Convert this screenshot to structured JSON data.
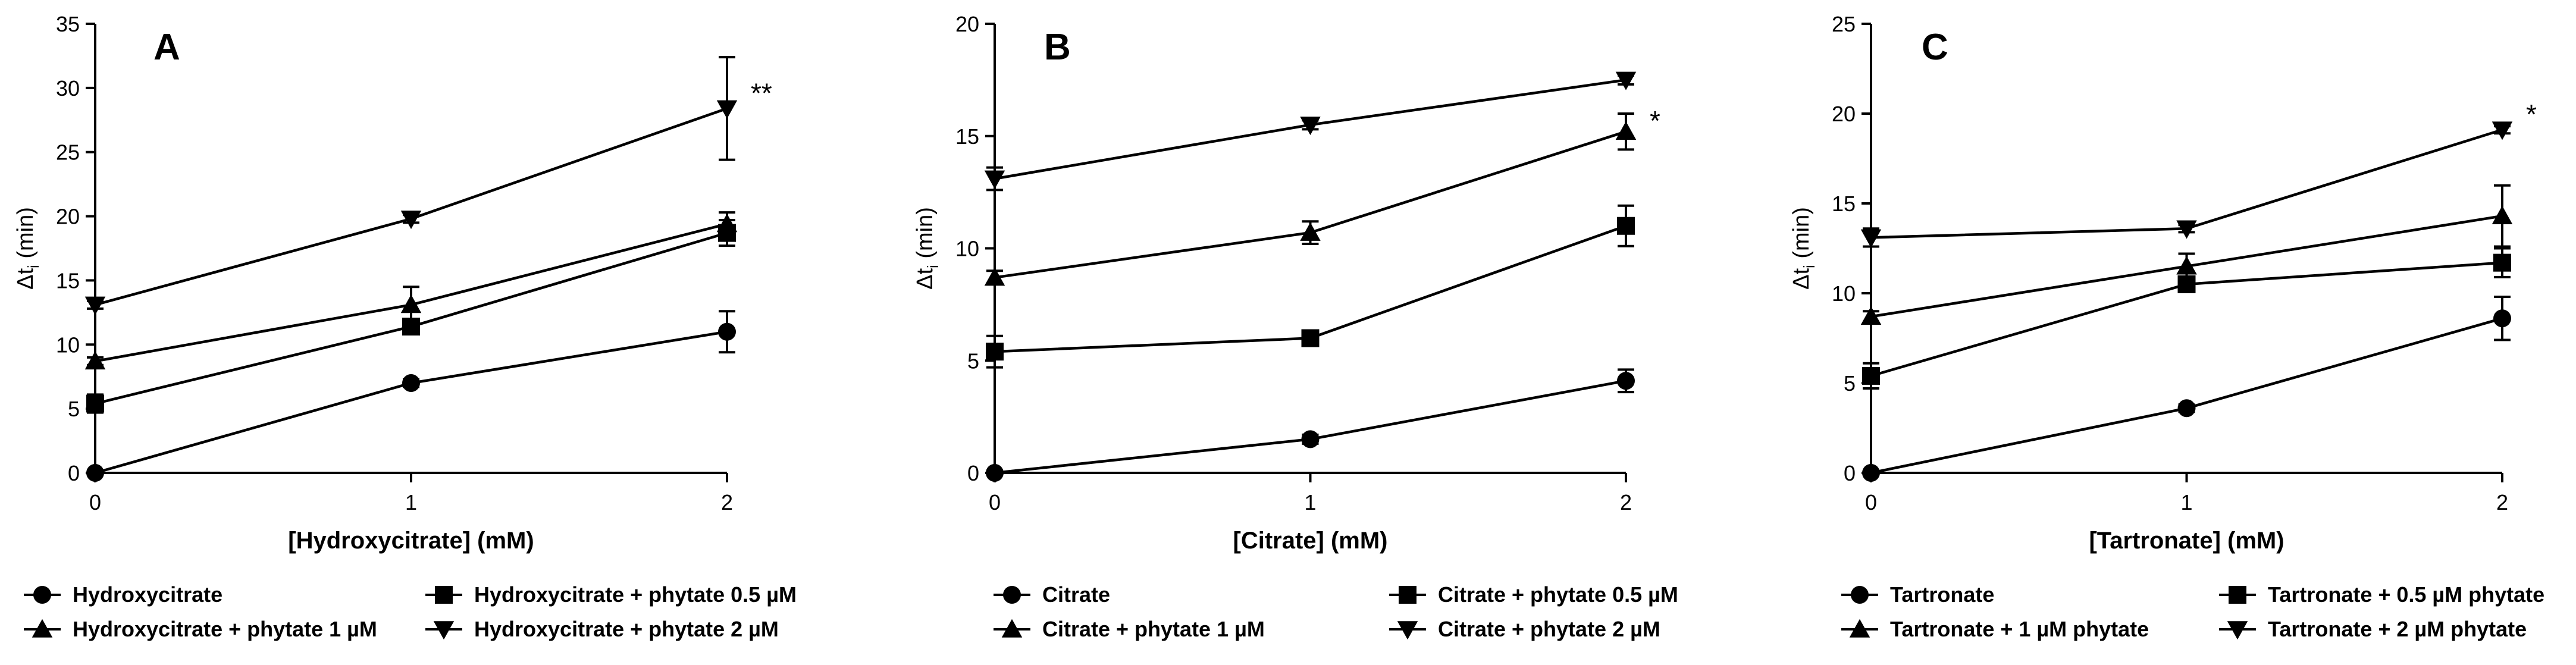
{
  "figure": {
    "colors": {
      "ink": "#000000",
      "background": "#ffffff"
    },
    "panels": [
      {
        "id": "A",
        "letter": "A",
        "xlabel": "[Hydroxycitrate] (mM)",
        "ylabel": {
          "main": "Δt",
          "sub": "i",
          "unit": " (min)"
        },
        "significance": "**",
        "chart_data": {
          "type": "line",
          "x": [
            0,
            1,
            2
          ],
          "xlim": [
            0,
            2
          ],
          "xticks": [
            0,
            1,
            2
          ],
          "ylim": [
            0,
            35
          ],
          "yticks": [
            0,
            5,
            10,
            15,
            20,
            25,
            30,
            35
          ],
          "series": [
            {
              "name": "Hydroxycitrate",
              "marker": "circle",
              "values": [
                0,
                7,
                11
              ],
              "errors": [
                0,
                0.3,
                1.6
              ]
            },
            {
              "name": "Hydroxycitrate + phytate 0.5 µM",
              "marker": "square",
              "values": [
                5.4,
                11.4,
                18.7
              ],
              "errors": [
                0.7,
                0.4,
                1.0
              ]
            },
            {
              "name": "Hydroxycitrate + phytate 1 µM",
              "marker": "triangle-up",
              "values": [
                8.7,
                13.1,
                19.4
              ],
              "errors": [
                0.3,
                1.4,
                0.9
              ]
            },
            {
              "name": "Hydroxycitrate + phytate 2 µM",
              "marker": "triangle-down",
              "values": [
                13.1,
                19.8,
                28.4
              ],
              "errors": [
                0.3,
                0.3,
                4.0
              ]
            }
          ]
        }
      },
      {
        "id": "B",
        "letter": "B",
        "xlabel": "[Citrate] (mM)",
        "ylabel": {
          "main": "Δt",
          "sub": "i",
          "unit": " (min)"
        },
        "significance": "*",
        "chart_data": {
          "type": "line",
          "x": [
            0,
            1,
            2
          ],
          "xlim": [
            0,
            2
          ],
          "xticks": [
            0,
            1,
            2
          ],
          "ylim": [
            0,
            20
          ],
          "yticks": [
            0,
            5,
            10,
            15,
            20
          ],
          "series": [
            {
              "name": "Citrate",
              "marker": "circle",
              "values": [
                0,
                1.5,
                4.1
              ],
              "errors": [
                0,
                0.2,
                0.5
              ]
            },
            {
              "name": "Citrate + phytate 0.5 µM",
              "marker": "square",
              "values": [
                5.4,
                6.0,
                11.0
              ],
              "errors": [
                0.7,
                0.2,
                0.9
              ]
            },
            {
              "name": "Citrate + phytate 1 µM",
              "marker": "triangle-up",
              "values": [
                8.7,
                10.7,
                15.2
              ],
              "errors": [
                0.3,
                0.5,
                0.8
              ]
            },
            {
              "name": "Citrate + phytate 2 µM",
              "marker": "triangle-down",
              "values": [
                13.1,
                15.5,
                17.5
              ],
              "errors": [
                0.5,
                0.2,
                0.2
              ]
            }
          ]
        }
      },
      {
        "id": "C",
        "letter": "C",
        "xlabel": "[Tartronate] (mM)",
        "ylabel": {
          "main": "Δt",
          "sub": "i",
          "unit": " (min)"
        },
        "significance": "*",
        "chart_data": {
          "type": "line",
          "x": [
            0,
            1,
            2
          ],
          "xlim": [
            0,
            2
          ],
          "xticks": [
            0,
            1,
            2
          ],
          "ylim": [
            0,
            25
          ],
          "yticks": [
            0,
            5,
            10,
            15,
            20,
            25
          ],
          "series": [
            {
              "name": "Tartronate",
              "marker": "circle",
              "values": [
                0,
                3.6,
                8.6
              ],
              "errors": [
                0,
                0.2,
                1.2
              ]
            },
            {
              "name": "Tartronate + 0.5 µM phytate",
              "marker": "square",
              "values": [
                5.4,
                10.5,
                11.7
              ],
              "errors": [
                0.7,
                0.4,
                0.8
              ]
            },
            {
              "name": "Tartronate + 1 µM phytate",
              "marker": "triangle-up",
              "values": [
                8.7,
                11.5,
                14.3
              ],
              "errors": [
                0.3,
                0.7,
                1.7
              ]
            },
            {
              "name": "Tartronate + 2 µM phytate",
              "marker": "triangle-down",
              "values": [
                13.1,
                13.6,
                19.1
              ],
              "errors": [
                0.5,
                0.2,
                0.2
              ]
            }
          ]
        }
      }
    ]
  }
}
